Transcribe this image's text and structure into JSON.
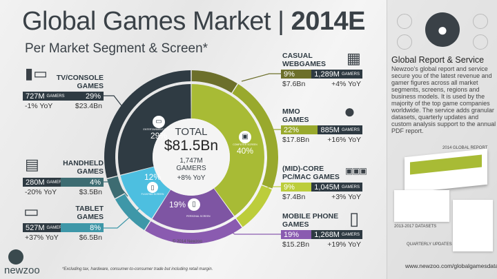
{
  "header": {
    "title_main": "Global Games Market",
    "title_sep": "|",
    "title_year": "2014E",
    "subtitle": "Per Market Segment & Screen*"
  },
  "total": {
    "label": "TOTAL",
    "revenue": "$81.5Bn",
    "gamers": "1,747M",
    "gamers_label": "GAMERS",
    "yoy": "+8% YoY"
  },
  "screens": [
    {
      "name": "COMPUTER SCREEN",
      "pct": "40%",
      "color": "#a8bb35"
    },
    {
      "name": "PERSONAL SCREEN",
      "pct": "19%",
      "color": "#7e55a3"
    },
    {
      "name": "FLOATING SCREEN",
      "pct": "12%",
      "color": "#4dbfe0"
    },
    {
      "name": "ENTERTAINMENT SCREEN",
      "pct": "29%",
      "color": "#2f3b43"
    }
  ],
  "segments": {
    "casual": {
      "label1": "CASUAL",
      "label2": "WEBGAMES",
      "pct": "9%",
      "gamers": "1,289M",
      "gamers_unit": "GAMERS",
      "revenue": "$7.6Bn",
      "yoy": "+4% YoY",
      "color": "#6c6f2b"
    },
    "mmo": {
      "label1": "MMO",
      "label2": "GAMES",
      "pct": "22%",
      "gamers": "885M",
      "gamers_unit": "GAMERS",
      "revenue": "$17.8Bn",
      "yoy": "+16% YoY",
      "color": "#99a92d"
    },
    "midcore": {
      "label1": "(MID)-CORE",
      "label2": "PC/MAC GAMES",
      "pct": "9%",
      "gamers": "1,045M",
      "gamers_unit": "GAMERS",
      "revenue": "$7.4Bn",
      "yoy": "+3% YoY",
      "color": "#bccd3b"
    },
    "mobile": {
      "label1": "MOBILE PHONE",
      "label2": "GAMES",
      "pct": "19%",
      "gamers": "1,268M",
      "gamers_unit": "GAMERS",
      "revenue": "$15.2Bn",
      "yoy": "+19% YoY",
      "color": "#8a5bb0"
    },
    "tablet": {
      "label1": "TABLET",
      "label2": "GAMES",
      "pct": "8%",
      "gamers": "527M",
      "gamers_unit": "GAMERS",
      "revenue": "$6.5Bn",
      "yoy": "+37% YoY",
      "color": "#3e97a8"
    },
    "handheld": {
      "label1": "HANDHELD",
      "label2": "GAMES",
      "pct": "4%",
      "gamers": "280M",
      "gamers_unit": "GAMERS",
      "revenue": "$3.5Bn",
      "yoy": "-20% YoY",
      "color": "#3d6c72"
    },
    "tv": {
      "label1": "TV/CONSOLE",
      "label2": "GAMES",
      "pct": "29%",
      "gamers": "727M",
      "gamers_unit": "GAMERS",
      "revenue": "$23.4Bn",
      "yoy": "-1% YoY",
      "color": "#2f3b43"
    }
  },
  "chart_data": {
    "type": "pie",
    "title": "Global Games Market 2014E",
    "inner_ring": {
      "categories": [
        "Computer Screen",
        "Personal Screen",
        "Floating Screen",
        "Entertainment Screen"
      ],
      "values": [
        40,
        19,
        12,
        29
      ]
    },
    "outer_ring": {
      "categories": [
        "Casual Webgames",
        "MMO Games",
        "(Mid)-Core PC/Mac Games",
        "Mobile Phone Games",
        "Tablet Games",
        "Handheld Games",
        "TV/Console Games"
      ],
      "values": [
        9,
        22,
        9,
        19,
        8,
        4,
        29
      ]
    },
    "unit": "% of revenue"
  },
  "copyright": "© 2014 Newzoo",
  "footnote": "*Excluding tax, hardware, consumer-to-consumer trade but including retail margin.",
  "logo": "newzoo",
  "side": {
    "heading": "Global Report & Service",
    "body": "Newzoo's global report and service secure you of the latest revenue and gamer figures across all market segments, screens, regions and business models. It is used by the majority of the top game companies worldwide. The service adds granular datasets, quarterly updates and custom analysis support to the annual PDF report.",
    "cap_report": "2014 GLOBAL REPORT",
    "cap_datasets": "2013-2017 DATASETS",
    "cap_quarterly": "QUARTERLY UPDATES",
    "url": "www.newzoo.com/globalgamesdata"
  }
}
